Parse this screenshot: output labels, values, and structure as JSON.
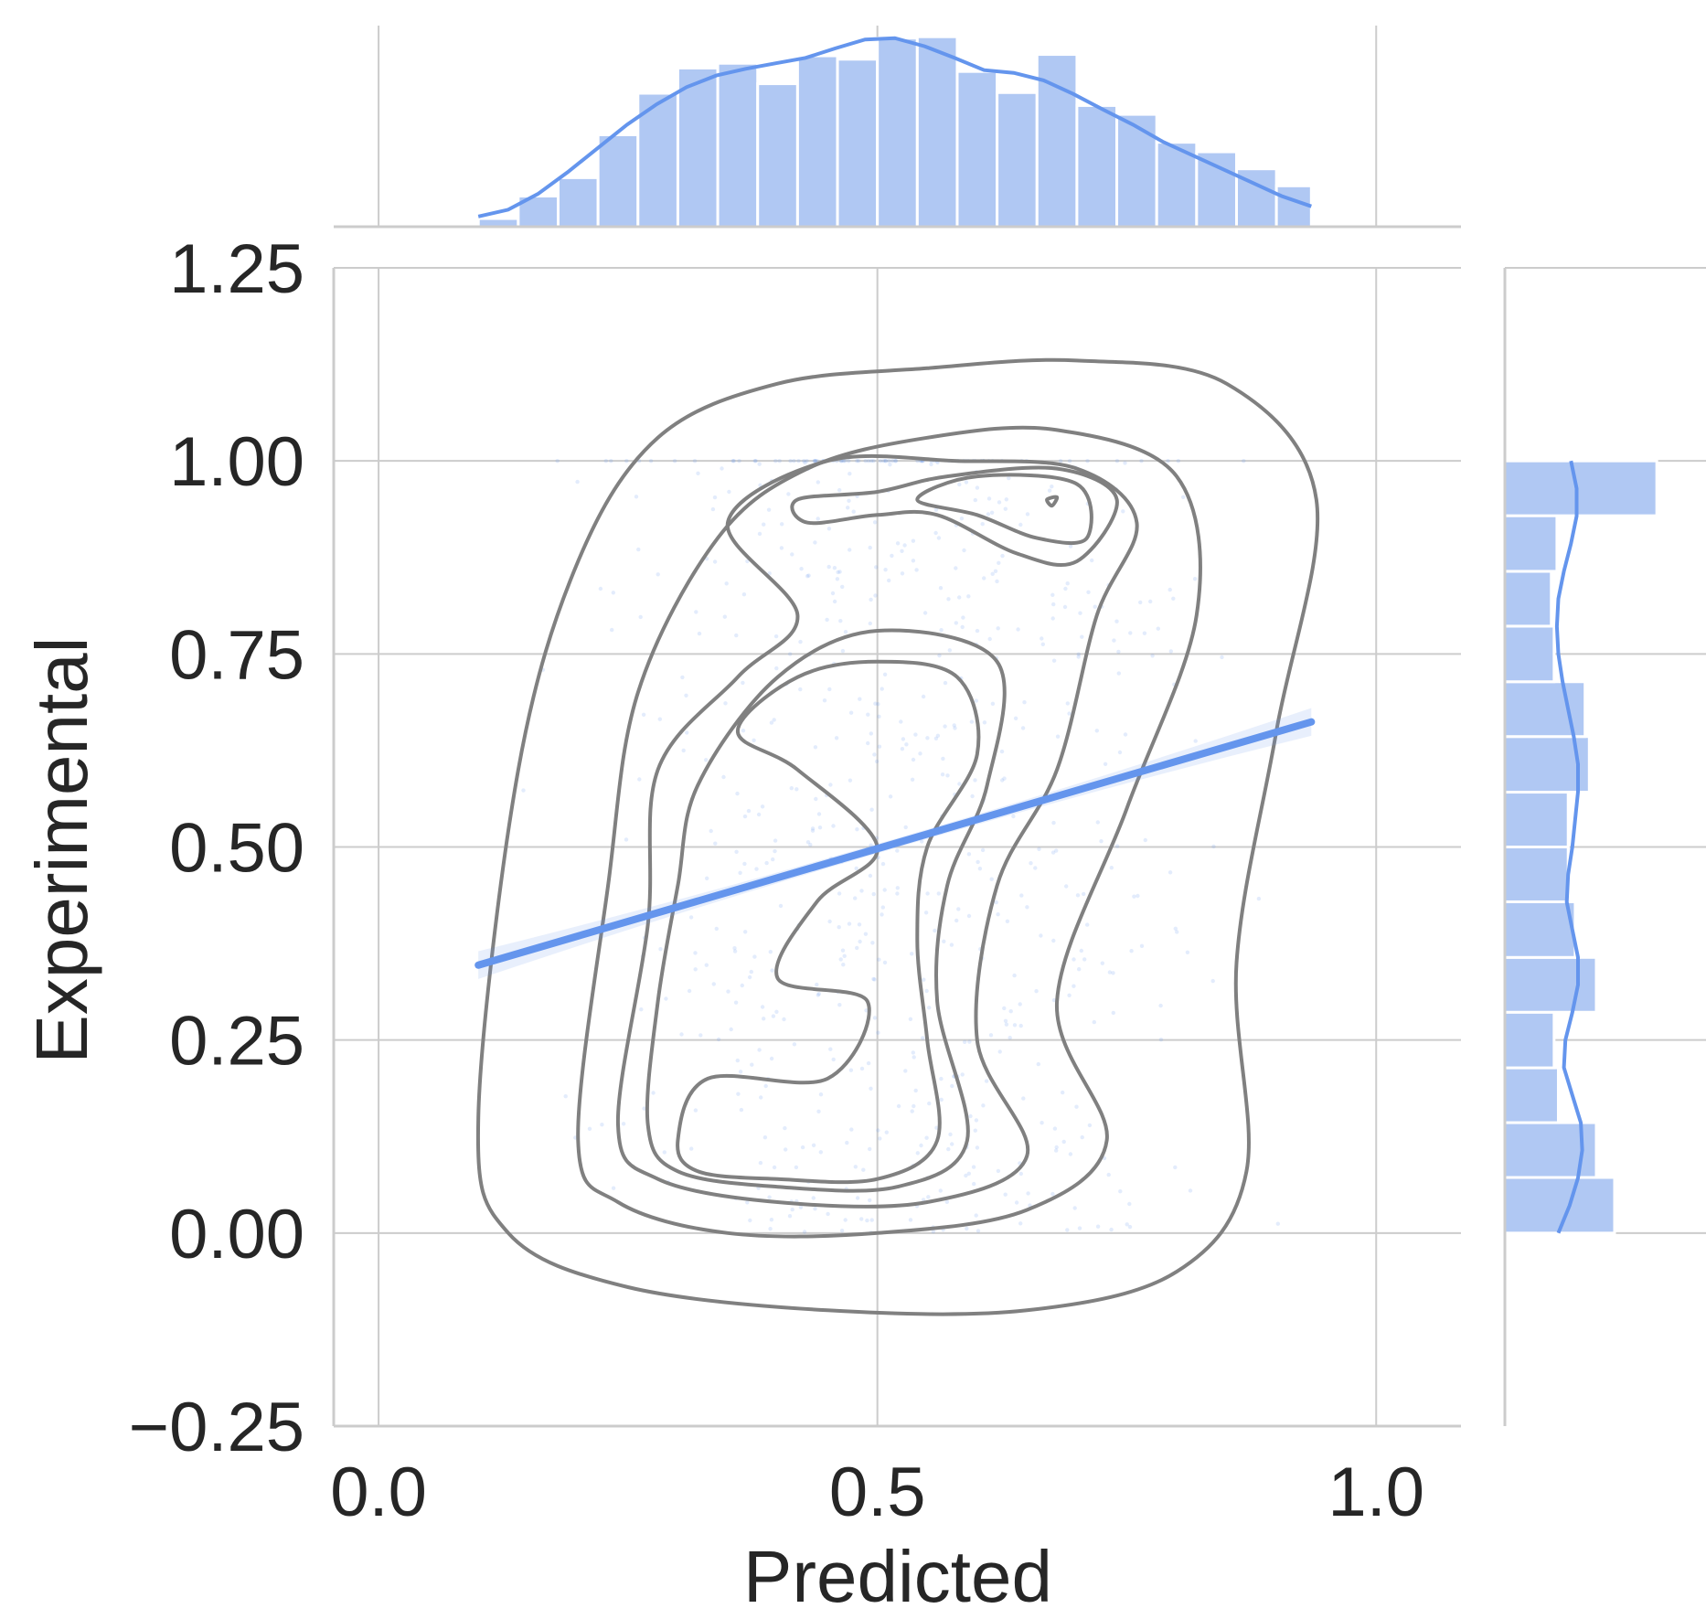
{
  "chart_data": {
    "type": "scatter",
    "title": "",
    "xlabel": "Predicted",
    "ylabel": "Experimental",
    "xlim": [
      -0.045,
      1.085
    ],
    "ylim": [
      -0.25,
      1.25
    ],
    "x_ticks": [
      0.0,
      0.5,
      1.0
    ],
    "x_tick_labels": [
      "0.0",
      "0.5",
      "1.0"
    ],
    "y_ticks": [
      -0.25,
      0.0,
      0.25,
      0.5,
      0.75,
      1.0,
      1.25
    ],
    "y_tick_labels": [
      "−0.25",
      "0.00",
      "0.25",
      "0.50",
      "0.75",
      "1.00",
      "1.25"
    ],
    "grid": true,
    "color": "#6495ed",
    "hist_color": "#b0c8f3",
    "contour_color": "#808080",
    "regression": {
      "x_start": 0.1,
      "y_start": 0.347,
      "x_end": 0.935,
      "y_end": 0.662,
      "ci_halfwidth_ends": 0.018,
      "ci_halfwidth_mid": 0.006
    },
    "scatter": {
      "approx_count": 3000,
      "x_range": [
        0.1,
        0.935
      ],
      "y_range": [
        0.0,
        1.0
      ],
      "note_dense_row_at_y": 1.0
    },
    "kde_contours": [
      [
        [
          0.1,
          0.15
        ],
        [
          0.14,
          0.6
        ],
        [
          0.2,
          0.87
        ],
        [
          0.28,
          1.03
        ],
        [
          0.4,
          1.1
        ],
        [
          0.55,
          1.12
        ],
        [
          0.7,
          1.13
        ],
        [
          0.85,
          1.1
        ],
        [
          0.94,
          0.95
        ],
        [
          0.9,
          0.65
        ],
        [
          0.86,
          0.35
        ],
        [
          0.87,
          0.08
        ],
        [
          0.8,
          -0.05
        ],
        [
          0.65,
          -0.1
        ],
        [
          0.45,
          -0.1
        ],
        [
          0.25,
          -0.07
        ],
        [
          0.13,
          0.0
        ]
      ],
      [
        [
          0.2,
          0.12
        ],
        [
          0.23,
          0.45
        ],
        [
          0.26,
          0.7
        ],
        [
          0.34,
          0.9
        ],
        [
          0.43,
          0.99
        ],
        [
          0.55,
          1.03
        ],
        [
          0.68,
          1.04
        ],
        [
          0.8,
          0.98
        ],
        [
          0.82,
          0.8
        ],
        [
          0.75,
          0.55
        ],
        [
          0.68,
          0.3
        ],
        [
          0.73,
          0.12
        ],
        [
          0.65,
          0.03
        ],
        [
          0.5,
          0.0
        ],
        [
          0.35,
          0.0
        ],
        [
          0.24,
          0.04
        ]
      ],
      [
        [
          0.24,
          0.14
        ],
        [
          0.27,
          0.4
        ],
        [
          0.28,
          0.6
        ],
        [
          0.36,
          0.72
        ],
        [
          0.42,
          0.8
        ],
        [
          0.35,
          0.92
        ],
        [
          0.45,
          1.0
        ],
        [
          0.58,
          1.0
        ],
        [
          0.7,
          0.99
        ],
        [
          0.76,
          0.92
        ],
        [
          0.72,
          0.8
        ],
        [
          0.68,
          0.6
        ],
        [
          0.62,
          0.45
        ],
        [
          0.6,
          0.25
        ],
        [
          0.65,
          0.1
        ],
        [
          0.55,
          0.04
        ],
        [
          0.4,
          0.04
        ],
        [
          0.28,
          0.07
        ]
      ],
      [
        [
          0.27,
          0.14
        ],
        [
          0.28,
          0.3
        ],
        [
          0.3,
          0.45
        ],
        [
          0.32,
          0.58
        ],
        [
          0.4,
          0.72
        ],
        [
          0.5,
          0.78
        ],
        [
          0.62,
          0.74
        ],
        [
          0.61,
          0.58
        ],
        [
          0.57,
          0.45
        ],
        [
          0.56,
          0.3
        ],
        [
          0.59,
          0.12
        ],
        [
          0.52,
          0.06
        ],
        [
          0.4,
          0.06
        ],
        [
          0.3,
          0.08
        ]
      ],
      [
        [
          0.3,
          0.12
        ],
        [
          0.33,
          0.2
        ],
        [
          0.45,
          0.2
        ],
        [
          0.49,
          0.3
        ],
        [
          0.4,
          0.33
        ],
        [
          0.44,
          0.43
        ],
        [
          0.5,
          0.5
        ],
        [
          0.42,
          0.6
        ],
        [
          0.36,
          0.65
        ],
        [
          0.42,
          0.72
        ],
        [
          0.5,
          0.74
        ],
        [
          0.58,
          0.72
        ],
        [
          0.6,
          0.62
        ],
        [
          0.55,
          0.5
        ],
        [
          0.54,
          0.38
        ],
        [
          0.55,
          0.25
        ],
        [
          0.56,
          0.12
        ],
        [
          0.5,
          0.07
        ],
        [
          0.4,
          0.07
        ],
        [
          0.32,
          0.08
        ]
      ],
      [
        [
          0.42,
          0.95
        ],
        [
          0.5,
          0.96
        ],
        [
          0.57,
          0.98
        ],
        [
          0.68,
          0.99
        ],
        [
          0.74,
          0.95
        ],
        [
          0.7,
          0.87
        ],
        [
          0.64,
          0.88
        ],
        [
          0.56,
          0.93
        ],
        [
          0.5,
          0.93
        ],
        [
          0.43,
          0.92
        ]
      ],
      [
        [
          0.54,
          0.95
        ],
        [
          0.6,
          0.98
        ],
        [
          0.7,
          0.97
        ],
        [
          0.71,
          0.9
        ],
        [
          0.66,
          0.9
        ],
        [
          0.6,
          0.93
        ]
      ],
      [
        [
          0.67,
          0.95
        ],
        [
          0.68,
          0.953
        ],
        [
          0.675,
          0.942
        ]
      ]
    ],
    "marginal_x": {
      "bin_edges": [
        0.1,
        0.14,
        0.18,
        0.22,
        0.26,
        0.3,
        0.34,
        0.38,
        0.42,
        0.46,
        0.5,
        0.54,
        0.58,
        0.62,
        0.66,
        0.7,
        0.74,
        0.78,
        0.82,
        0.86,
        0.9,
        0.935
      ],
      "counts": [
        12,
        45,
        72,
        135,
        196,
        233,
        240,
        210,
        251,
        246,
        277,
        279,
        228,
        197,
        253,
        178,
        165,
        124,
        110,
        85,
        60
      ],
      "kde_y": [
        15,
        25,
        48,
        80,
        115,
        150,
        180,
        205,
        222,
        232,
        240,
        248,
        262,
        275,
        277,
        265,
        248,
        230,
        226,
        215,
        195,
        172,
        150,
        125,
        105,
        85,
        65,
        45,
        30
      ]
    },
    "marginal_y": {
      "bin_edges": [
        0.0,
        0.072,
        0.143,
        0.214,
        0.286,
        0.357,
        0.429,
        0.5,
        0.571,
        0.643,
        0.714,
        0.786,
        0.857,
        0.929,
        1.0
      ],
      "counts": [
        78,
        65,
        38,
        35,
        65,
        50,
        45,
        45,
        60,
        57,
        35,
        33,
        37,
        108
      ],
      "kde_x": [
        38,
        46,
        52,
        55,
        54,
        48,
        42,
        43,
        48,
        52,
        52,
        48,
        44,
        45,
        48,
        50,
        52,
        52,
        49,
        45,
        41,
        38,
        37,
        38,
        42,
        47,
        51,
        51,
        47
      ]
    }
  }
}
